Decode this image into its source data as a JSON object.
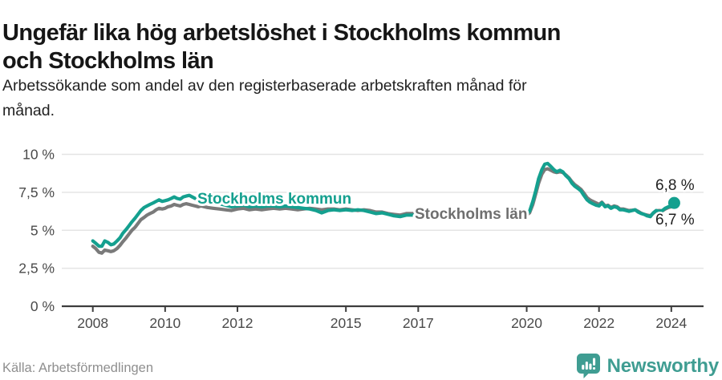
{
  "header": {
    "title_line1": "Ungefär lika hög arbetslöshet i Stockholms kommun",
    "title_line2": "och Stockholms län",
    "subtitle_line1": "Arbetssökande som andel av den registerbaserade arbetskraften månad för",
    "subtitle_line2": "månad."
  },
  "footer": {
    "source": "Källa: Arbetsförmedlingen",
    "brand": "Newsworthy"
  },
  "colors": {
    "kommun_teal": "#14a08f",
    "lan_gray": "#7a7a7a",
    "brand_teal": "#3f9d92",
    "grid": "#e4e4e4",
    "axis": "#3d3d3d"
  },
  "chart_data": {
    "type": "line",
    "title": "Ungefär lika hög arbetslöshet i Stockholms kommun och Stockholms län",
    "subtitle": "Arbetssökande som andel av den registerbaserade arbetskraften månad för månad.",
    "unit": "%",
    "x_axis": {
      "ticks": [
        {
          "year": 2008,
          "label": "2008"
        },
        {
          "year": 2010,
          "label": "2010"
        },
        {
          "year": 2012,
          "label": "2012"
        },
        {
          "year": 2015,
          "label": "2015"
        },
        {
          "year": 2017,
          "label": "2017"
        },
        {
          "year": 2020,
          "label": "2020"
        },
        {
          "year": 2022,
          "label": "2022"
        },
        {
          "year": 2024,
          "label": "2024"
        }
      ],
      "range": [
        2008,
        2024.3
      ]
    },
    "y_axis": {
      "ticks": [
        {
          "v": 10,
          "label": "10 %"
        },
        {
          "v": 7.5,
          "label": "7,5 %"
        },
        {
          "v": 5,
          "label": "5 %"
        },
        {
          "v": 2.5,
          "label": "2,5 %"
        },
        {
          "v": 0,
          "label": "0 %"
        }
      ],
      "range": [
        0,
        10
      ],
      "grid": true
    },
    "legend_position": "inline-labels",
    "series": [
      {
        "name": "Stockholms län",
        "color": "#7a7a7a",
        "end_label": "6,7 %",
        "segments": [
          [
            [
              2008.0,
              3.95
            ],
            [
              2008.08,
              3.8
            ],
            [
              2008.17,
              3.55
            ],
            [
              2008.25,
              3.5
            ],
            [
              2008.33,
              3.7
            ],
            [
              2008.42,
              3.65
            ],
            [
              2008.5,
              3.6
            ],
            [
              2008.58,
              3.65
            ],
            [
              2008.67,
              3.8
            ],
            [
              2008.75,
              4.0
            ],
            [
              2008.83,
              4.25
            ],
            [
              2008.92,
              4.5
            ],
            [
              2009.0,
              4.75
            ],
            [
              2009.08,
              5.0
            ],
            [
              2009.17,
              5.2
            ],
            [
              2009.25,
              5.45
            ],
            [
              2009.33,
              5.7
            ],
            [
              2009.42,
              5.85
            ],
            [
              2009.5,
              6.0
            ],
            [
              2009.58,
              6.1
            ],
            [
              2009.67,
              6.2
            ],
            [
              2009.75,
              6.35
            ],
            [
              2009.83,
              6.45
            ],
            [
              2009.92,
              6.4
            ],
            [
              2010.0,
              6.45
            ],
            [
              2010.08,
              6.55
            ],
            [
              2010.17,
              6.6
            ],
            [
              2010.25,
              6.7
            ],
            [
              2010.33,
              6.65
            ],
            [
              2010.42,
              6.6
            ],
            [
              2010.5,
              6.7
            ],
            [
              2010.58,
              6.75
            ],
            [
              2010.67,
              6.7
            ],
            [
              2010.75,
              6.65
            ],
            [
              2010.83,
              6.6
            ],
            [
              2010.92,
              6.55
            ],
            [
              2011.0,
              6.6
            ],
            [
              2011.17,
              6.5
            ],
            [
              2011.33,
              6.45
            ],
            [
              2011.5,
              6.4
            ],
            [
              2011.67,
              6.35
            ],
            [
              2011.83,
              6.3
            ],
            [
              2012.0,
              6.4
            ],
            [
              2012.17,
              6.45
            ],
            [
              2012.33,
              6.35
            ],
            [
              2012.5,
              6.4
            ],
            [
              2012.67,
              6.35
            ],
            [
              2012.83,
              6.4
            ],
            [
              2013.0,
              6.45
            ],
            [
              2013.17,
              6.4
            ],
            [
              2013.33,
              6.45
            ],
            [
              2013.5,
              6.4
            ],
            [
              2013.67,
              6.35
            ],
            [
              2013.83,
              6.4
            ],
            [
              2014.0,
              6.45
            ],
            [
              2014.17,
              6.4
            ],
            [
              2014.33,
              6.35
            ],
            [
              2014.5,
              6.4
            ],
            [
              2014.67,
              6.4
            ],
            [
              2014.83,
              6.35
            ],
            [
              2015.0,
              6.4
            ],
            [
              2015.17,
              6.35
            ],
            [
              2015.33,
              6.3
            ],
            [
              2015.5,
              6.35
            ],
            [
              2015.67,
              6.3
            ],
            [
              2015.83,
              6.2
            ],
            [
              2016.0,
              6.2
            ],
            [
              2016.17,
              6.1
            ],
            [
              2016.33,
              6.05
            ],
            [
              2016.5,
              6.0
            ],
            [
              2016.67,
              6.1
            ],
            [
              2016.85,
              6.1
            ]
          ],
          [
            [
              2020.0,
              6.0
            ],
            [
              2020.08,
              6.15
            ],
            [
              2020.17,
              6.7
            ],
            [
              2020.25,
              7.4
            ],
            [
              2020.33,
              8.1
            ],
            [
              2020.42,
              8.7
            ],
            [
              2020.5,
              9.0
            ],
            [
              2020.58,
              9.05
            ],
            [
              2020.67,
              8.95
            ],
            [
              2020.75,
              8.85
            ],
            [
              2020.83,
              8.8
            ],
            [
              2020.92,
              8.85
            ],
            [
              2021.0,
              8.8
            ],
            [
              2021.08,
              8.65
            ],
            [
              2021.17,
              8.45
            ],
            [
              2021.25,
              8.2
            ],
            [
              2021.33,
              8.0
            ],
            [
              2021.42,
              7.85
            ],
            [
              2021.5,
              7.7
            ],
            [
              2021.58,
              7.45
            ],
            [
              2021.67,
              7.15
            ],
            [
              2021.75,
              7.0
            ],
            [
              2021.83,
              6.9
            ],
            [
              2021.92,
              6.8
            ],
            [
              2022.0,
              6.7
            ],
            [
              2022.08,
              6.85
            ],
            [
              2022.17,
              6.6
            ],
            [
              2022.25,
              6.65
            ],
            [
              2022.33,
              6.5
            ],
            [
              2022.42,
              6.6
            ],
            [
              2022.5,
              6.55
            ],
            [
              2022.58,
              6.4
            ],
            [
              2022.67,
              6.4
            ],
            [
              2022.75,
              6.35
            ],
            [
              2022.83,
              6.3
            ],
            [
              2022.92,
              6.32
            ],
            [
              2023.0,
              6.35
            ],
            [
              2023.08,
              6.25
            ],
            [
              2023.17,
              6.12
            ],
            [
              2023.25,
              6.05
            ],
            [
              2023.33,
              6.0
            ],
            [
              2023.42,
              5.95
            ],
            [
              2023.5,
              6.12
            ],
            [
              2023.58,
              6.28
            ],
            [
              2023.67,
              6.3
            ],
            [
              2023.75,
              6.28
            ],
            [
              2023.83,
              6.4
            ],
            [
              2023.92,
              6.5
            ],
            [
              2024.0,
              6.55
            ],
            [
              2024.08,
              6.7
            ]
          ]
        ]
      },
      {
        "name": "Stockholms kommun",
        "color": "#14a08f",
        "end_label": "6,8 %",
        "end_dot": true,
        "segments": [
          [
            [
              2008.0,
              4.3
            ],
            [
              2008.08,
              4.15
            ],
            [
              2008.17,
              3.95
            ],
            [
              2008.25,
              3.95
            ],
            [
              2008.33,
              4.3
            ],
            [
              2008.42,
              4.2
            ],
            [
              2008.5,
              4.05
            ],
            [
              2008.58,
              4.1
            ],
            [
              2008.67,
              4.3
            ],
            [
              2008.75,
              4.5
            ],
            [
              2008.83,
              4.8
            ],
            [
              2008.92,
              5.05
            ],
            [
              2009.0,
              5.3
            ],
            [
              2009.08,
              5.55
            ],
            [
              2009.17,
              5.8
            ],
            [
              2009.25,
              6.05
            ],
            [
              2009.33,
              6.3
            ],
            [
              2009.42,
              6.5
            ],
            [
              2009.5,
              6.6
            ],
            [
              2009.58,
              6.7
            ],
            [
              2009.67,
              6.8
            ],
            [
              2009.75,
              6.9
            ],
            [
              2009.83,
              7.0
            ],
            [
              2009.92,
              6.9
            ],
            [
              2010.0,
              6.95
            ],
            [
              2010.08,
              7.0
            ],
            [
              2010.17,
              7.1
            ],
            [
              2010.25,
              7.2
            ],
            [
              2010.33,
              7.1
            ],
            [
              2010.42,
              7.05
            ],
            [
              2010.5,
              7.2
            ],
            [
              2010.58,
              7.25
            ],
            [
              2010.67,
              7.3
            ],
            [
              2010.75,
              7.2
            ],
            [
              2010.83,
              7.1
            ],
            [
              2010.92,
              7.05
            ],
            [
              2011.0,
              7.1
            ],
            [
              2011.17,
              6.95
            ],
            [
              2011.33,
              6.85
            ],
            [
              2011.5,
              6.75
            ],
            [
              2011.67,
              6.65
            ],
            [
              2011.83,
              6.55
            ],
            [
              2012.0,
              6.6
            ],
            [
              2012.17,
              6.65
            ],
            [
              2012.33,
              6.55
            ],
            [
              2012.5,
              6.6
            ],
            [
              2012.67,
              6.55
            ],
            [
              2012.83,
              6.6
            ],
            [
              2013.0,
              6.6
            ],
            [
              2013.17,
              6.55
            ],
            [
              2013.33,
              6.6
            ],
            [
              2013.5,
              6.55
            ],
            [
              2013.67,
              6.5
            ],
            [
              2013.83,
              6.45
            ],
            [
              2014.0,
              6.4
            ],
            [
              2014.17,
              6.3
            ],
            [
              2014.33,
              6.15
            ],
            [
              2014.5,
              6.3
            ],
            [
              2014.67,
              6.35
            ],
            [
              2014.83,
              6.3
            ],
            [
              2015.0,
              6.35
            ],
            [
              2015.17,
              6.3
            ],
            [
              2015.33,
              6.35
            ],
            [
              2015.5,
              6.3
            ],
            [
              2015.67,
              6.2
            ],
            [
              2015.83,
              6.1
            ],
            [
              2016.0,
              6.15
            ],
            [
              2016.17,
              6.05
            ],
            [
              2016.33,
              5.95
            ],
            [
              2016.5,
              5.9
            ],
            [
              2016.67,
              6.0
            ],
            [
              2016.85,
              6.0
            ]
          ],
          [
            [
              2020.0,
              6.1
            ],
            [
              2020.08,
              6.25
            ],
            [
              2020.17,
              6.9
            ],
            [
              2020.25,
              7.6
            ],
            [
              2020.33,
              8.4
            ],
            [
              2020.42,
              9.0
            ],
            [
              2020.5,
              9.35
            ],
            [
              2020.58,
              9.4
            ],
            [
              2020.67,
              9.2
            ],
            [
              2020.75,
              9.0
            ],
            [
              2020.83,
              8.85
            ],
            [
              2020.92,
              8.95
            ],
            [
              2021.0,
              8.85
            ],
            [
              2021.08,
              8.6
            ],
            [
              2021.17,
              8.4
            ],
            [
              2021.25,
              8.1
            ],
            [
              2021.33,
              7.9
            ],
            [
              2021.42,
              7.75
            ],
            [
              2021.5,
              7.6
            ],
            [
              2021.58,
              7.3
            ],
            [
              2021.67,
              7.0
            ],
            [
              2021.75,
              6.85
            ],
            [
              2021.83,
              6.75
            ],
            [
              2021.92,
              6.65
            ],
            [
              2022.0,
              6.6
            ],
            [
              2022.08,
              6.8
            ],
            [
              2022.17,
              6.55
            ],
            [
              2022.25,
              6.6
            ],
            [
              2022.33,
              6.45
            ],
            [
              2022.42,
              6.55
            ],
            [
              2022.5,
              6.5
            ],
            [
              2022.58,
              6.35
            ],
            [
              2022.67,
              6.35
            ],
            [
              2022.75,
              6.3
            ],
            [
              2022.83,
              6.25
            ],
            [
              2022.92,
              6.3
            ],
            [
              2023.0,
              6.35
            ],
            [
              2023.08,
              6.2
            ],
            [
              2023.17,
              6.1
            ],
            [
              2023.25,
              6.05
            ],
            [
              2023.33,
              5.95
            ],
            [
              2023.42,
              5.9
            ],
            [
              2023.5,
              6.15
            ],
            [
              2023.58,
              6.3
            ],
            [
              2023.67,
              6.25
            ],
            [
              2023.75,
              6.3
            ],
            [
              2023.83,
              6.45
            ],
            [
              2023.92,
              6.55
            ],
            [
              2024.0,
              6.6
            ],
            [
              2024.08,
              6.8
            ]
          ]
        ]
      }
    ]
  }
}
